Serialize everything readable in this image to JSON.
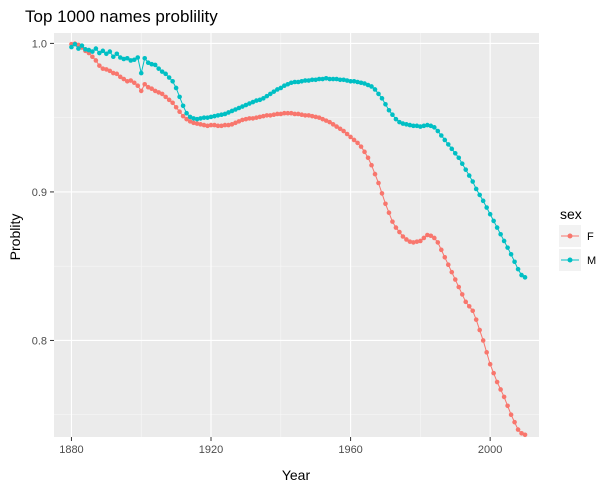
{
  "chart_data": {
    "type": "line",
    "title": "Top 1000 names problility",
    "xlabel": "Year",
    "ylabel": "Problity",
    "xlim": [
      1875,
      2014
    ],
    "ylim": [
      0.735,
      1.007
    ],
    "x_ticks": [
      1880,
      1920,
      1960,
      2000
    ],
    "x_tick_labels": [
      "1880",
      "1920",
      "1960",
      "2000"
    ],
    "y_ticks": [
      0.8,
      0.9,
      1.0
    ],
    "y_tick_labels": [
      "0.8",
      "0.9",
      "1.0"
    ],
    "grid": true,
    "legend": {
      "title": "sex",
      "position": "right"
    },
    "series": [
      {
        "name": "F",
        "color": "#F8766D",
        "points": [
          [
            1880,
            0.9995
          ],
          [
            1881,
            0.9998
          ],
          [
            1882,
            0.999
          ],
          [
            1883,
            0.9972
          ],
          [
            1884,
            0.995
          ],
          [
            1885,
            0.9935
          ],
          [
            1886,
            0.991
          ],
          [
            1887,
            0.9885
          ],
          [
            1888,
            0.985
          ],
          [
            1889,
            0.983
          ],
          [
            1890,
            0.9825
          ],
          [
            1891,
            0.9815
          ],
          [
            1892,
            0.98
          ],
          [
            1893,
            0.9795
          ],
          [
            1894,
            0.9775
          ],
          [
            1895,
            0.976
          ],
          [
            1896,
            0.9745
          ],
          [
            1897,
            0.975
          ],
          [
            1898,
            0.9735
          ],
          [
            1899,
            0.9715
          ],
          [
            1900,
            0.968
          ],
          [
            1901,
            0.9725
          ],
          [
            1902,
            0.9705
          ],
          [
            1903,
            0.9695
          ],
          [
            1904,
            0.968
          ],
          [
            1905,
            0.967
          ],
          [
            1906,
            0.966
          ],
          [
            1907,
            0.964
          ],
          [
            1908,
            0.962
          ],
          [
            1909,
            0.96
          ],
          [
            1910,
            0.957
          ],
          [
            1911,
            0.954
          ],
          [
            1912,
            0.951
          ],
          [
            1913,
            0.949
          ],
          [
            1914,
            0.9475
          ],
          [
            1915,
            0.9465
          ],
          [
            1916,
            0.946
          ],
          [
            1917,
            0.9455
          ],
          [
            1918,
            0.945
          ],
          [
            1919,
            0.9445
          ],
          [
            1920,
            0.945
          ],
          [
            1921,
            0.945
          ],
          [
            1922,
            0.9445
          ],
          [
            1923,
            0.9445
          ],
          [
            1924,
            0.945
          ],
          [
            1925,
            0.945
          ],
          [
            1926,
            0.9455
          ],
          [
            1927,
            0.9465
          ],
          [
            1928,
            0.9475
          ],
          [
            1929,
            0.9485
          ],
          [
            1930,
            0.949
          ],
          [
            1931,
            0.9495
          ],
          [
            1932,
            0.9495
          ],
          [
            1933,
            0.95
          ],
          [
            1934,
            0.9505
          ],
          [
            1935,
            0.951
          ],
          [
            1936,
            0.9515
          ],
          [
            1937,
            0.9515
          ],
          [
            1938,
            0.952
          ],
          [
            1939,
            0.9525
          ],
          [
            1940,
            0.9525
          ],
          [
            1941,
            0.953
          ],
          [
            1942,
            0.953
          ],
          [
            1943,
            0.953
          ],
          [
            1944,
            0.9525
          ],
          [
            1945,
            0.9525
          ],
          [
            1946,
            0.952
          ],
          [
            1947,
            0.9515
          ],
          [
            1948,
            0.9515
          ],
          [
            1949,
            0.951
          ],
          [
            1950,
            0.9505
          ],
          [
            1951,
            0.95
          ],
          [
            1952,
            0.949
          ],
          [
            1953,
            0.948
          ],
          [
            1954,
            0.947
          ],
          [
            1955,
            0.9455
          ],
          [
            1956,
            0.944
          ],
          [
            1957,
            0.9425
          ],
          [
            1958,
            0.941
          ],
          [
            1959,
            0.939
          ],
          [
            1960,
            0.937
          ],
          [
            1961,
            0.935
          ],
          [
            1962,
            0.933
          ],
          [
            1963,
            0.9305
          ],
          [
            1964,
            0.927
          ],
          [
            1965,
            0.923
          ],
          [
            1966,
            0.918
          ],
          [
            1967,
            0.912
          ],
          [
            1968,
            0.906
          ],
          [
            1969,
            0.899
          ],
          [
            1970,
            0.892
          ],
          [
            1971,
            0.886
          ],
          [
            1972,
            0.88
          ],
          [
            1973,
            0.876
          ],
          [
            1974,
            0.873
          ],
          [
            1975,
            0.87
          ],
          [
            1976,
            0.868
          ],
          [
            1977,
            0.8665
          ],
          [
            1978,
            0.866
          ],
          [
            1979,
            0.8665
          ],
          [
            1980,
            0.867
          ],
          [
            1981,
            0.869
          ],
          [
            1982,
            0.871
          ],
          [
            1983,
            0.8705
          ],
          [
            1984,
            0.869
          ],
          [
            1985,
            0.866
          ],
          [
            1986,
            0.861
          ],
          [
            1987,
            0.856
          ],
          [
            1988,
            0.851
          ],
          [
            1989,
            0.846
          ],
          [
            1990,
            0.841
          ],
          [
            1991,
            0.836
          ],
          [
            1992,
            0.831
          ],
          [
            1993,
            0.826
          ],
          [
            1994,
            0.823
          ],
          [
            1995,
            0.82
          ],
          [
            1996,
            0.814
          ],
          [
            1997,
            0.807
          ],
          [
            1998,
            0.8
          ],
          [
            1999,
            0.792
          ],
          [
            2000,
            0.784
          ],
          [
            2001,
            0.778
          ],
          [
            2002,
            0.772
          ],
          [
            2003,
            0.767
          ],
          [
            2004,
            0.762
          ],
          [
            2005,
            0.756
          ],
          [
            2006,
            0.75
          ],
          [
            2007,
            0.745
          ],
          [
            2008,
            0.74
          ],
          [
            2009,
            0.7375
          ],
          [
            2010,
            0.7365
          ]
        ]
      },
      {
        "name": "M",
        "color": "#00BFC4",
        "points": [
          [
            1880,
            0.9975
          ],
          [
            1881,
            0.9995
          ],
          [
            1882,
            0.9965
          ],
          [
            1883,
            0.9985
          ],
          [
            1884,
            0.996
          ],
          [
            1885,
            0.9955
          ],
          [
            1886,
            0.9945
          ],
          [
            1887,
            0.9965
          ],
          [
            1888,
            0.9935
          ],
          [
            1889,
            0.995
          ],
          [
            1890,
            0.993
          ],
          [
            1891,
            0.9945
          ],
          [
            1892,
            0.991
          ],
          [
            1893,
            0.993
          ],
          [
            1894,
            0.9905
          ],
          [
            1895,
            0.9895
          ],
          [
            1896,
            0.99
          ],
          [
            1897,
            0.9885
          ],
          [
            1898,
            0.989
          ],
          [
            1899,
            0.9905
          ],
          [
            1900,
            0.98
          ],
          [
            1901,
            0.99
          ],
          [
            1902,
            0.987
          ],
          [
            1903,
            0.986
          ],
          [
            1904,
            0.9855
          ],
          [
            1905,
            0.983
          ],
          [
            1906,
            0.981
          ],
          [
            1907,
            0.9795
          ],
          [
            1908,
            0.977
          ],
          [
            1909,
            0.9745
          ],
          [
            1910,
            0.97
          ],
          [
            1911,
            0.964
          ],
          [
            1912,
            0.958
          ],
          [
            1913,
            0.953
          ],
          [
            1914,
            0.9505
          ],
          [
            1915,
            0.9495
          ],
          [
            1916,
            0.949
          ],
          [
            1917,
            0.9495
          ],
          [
            1918,
            0.95
          ],
          [
            1919,
            0.95
          ],
          [
            1920,
            0.9505
          ],
          [
            1921,
            0.951
          ],
          [
            1922,
            0.9515
          ],
          [
            1923,
            0.952
          ],
          [
            1924,
            0.9525
          ],
          [
            1925,
            0.9535
          ],
          [
            1926,
            0.9545
          ],
          [
            1927,
            0.9555
          ],
          [
            1928,
            0.9565
          ],
          [
            1929,
            0.9575
          ],
          [
            1930,
            0.9585
          ],
          [
            1931,
            0.9595
          ],
          [
            1932,
            0.9605
          ],
          [
            1933,
            0.9615
          ],
          [
            1934,
            0.962
          ],
          [
            1935,
            0.963
          ],
          [
            1936,
            0.9645
          ],
          [
            1937,
            0.966
          ],
          [
            1938,
            0.9675
          ],
          [
            1939,
            0.969
          ],
          [
            1940,
            0.97
          ],
          [
            1941,
            0.9715
          ],
          [
            1942,
            0.9725
          ],
          [
            1943,
            0.9735
          ],
          [
            1944,
            0.974
          ],
          [
            1945,
            0.974
          ],
          [
            1946,
            0.9745
          ],
          [
            1947,
            0.975
          ],
          [
            1948,
            0.975
          ],
          [
            1949,
            0.9755
          ],
          [
            1950,
            0.9755
          ],
          [
            1951,
            0.976
          ],
          [
            1952,
            0.976
          ],
          [
            1953,
            0.9765
          ],
          [
            1954,
            0.976
          ],
          [
            1955,
            0.976
          ],
          [
            1956,
            0.976
          ],
          [
            1957,
            0.9755
          ],
          [
            1958,
            0.9755
          ],
          [
            1959,
            0.975
          ],
          [
            1960,
            0.9745
          ],
          [
            1961,
            0.9745
          ],
          [
            1962,
            0.974
          ],
          [
            1963,
            0.9735
          ],
          [
            1964,
            0.973
          ],
          [
            1965,
            0.972
          ],
          [
            1966,
            0.971
          ],
          [
            1967,
            0.969
          ],
          [
            1968,
            0.966
          ],
          [
            1969,
            0.963
          ],
          [
            1970,
            0.959
          ],
          [
            1971,
            0.955
          ],
          [
            1972,
            0.952
          ],
          [
            1973,
            0.949
          ],
          [
            1974,
            0.947
          ],
          [
            1975,
            0.946
          ],
          [
            1976,
            0.9455
          ],
          [
            1977,
            0.945
          ],
          [
            1978,
            0.9445
          ],
          [
            1979,
            0.9445
          ],
          [
            1980,
            0.944
          ],
          [
            1981,
            0.9445
          ],
          [
            1982,
            0.945
          ],
          [
            1983,
            0.9445
          ],
          [
            1984,
            0.9435
          ],
          [
            1985,
            0.941
          ],
          [
            1986,
            0.938
          ],
          [
            1987,
            0.935
          ],
          [
            1988,
            0.932
          ],
          [
            1989,
            0.929
          ],
          [
            1990,
            0.926
          ],
          [
            1991,
            0.923
          ],
          [
            1992,
            0.919
          ],
          [
            1993,
            0.915
          ],
          [
            1994,
            0.911
          ],
          [
            1995,
            0.907
          ],
          [
            1996,
            0.902
          ],
          [
            1997,
            0.898
          ],
          [
            1998,
            0.894
          ],
          [
            1999,
            0.8895
          ],
          [
            2000,
            0.885
          ],
          [
            2001,
            0.8805
          ],
          [
            2002,
            0.876
          ],
          [
            2003,
            0.8715
          ],
          [
            2004,
            0.867
          ],
          [
            2005,
            0.8625
          ],
          [
            2006,
            0.858
          ],
          [
            2007,
            0.853
          ],
          [
            2008,
            0.848
          ],
          [
            2009,
            0.844
          ],
          [
            2010,
            0.8425
          ]
        ]
      }
    ]
  }
}
